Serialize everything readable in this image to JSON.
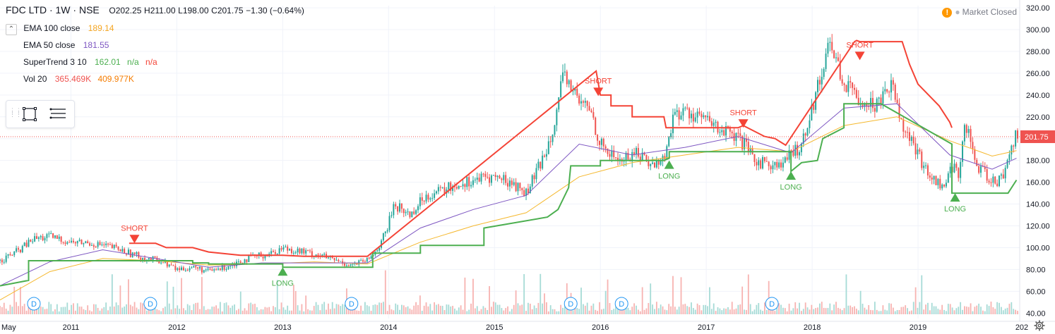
{
  "header": {
    "symbol": "FDC LTD · 1W · NSE",
    "open": "O202.25",
    "high": "H211.00",
    "low": "L198.00",
    "close": "C201.75",
    "change": "−1.30 (−0.64%)"
  },
  "indicators": [
    {
      "label": "EMA 100 close",
      "value": "189.14",
      "color": "#f5b82e"
    },
    {
      "label": "EMA 50 close",
      "value": "181.55",
      "color": "#7e57c2"
    },
    {
      "label": "SuperTrend 3 10",
      "value": "162.01",
      "extra1": "n/a",
      "extra2": "n/a"
    },
    {
      "label": "Vol 20",
      "value": "365.469K",
      "value2": "409.977K"
    }
  ],
  "market_status": "Market Closed",
  "colors": {
    "up": "#26a69a",
    "down": "#ef5350",
    "st_up": "#4caf50",
    "st_down": "#f44336",
    "ema100": "#f5b82e",
    "ema50": "#7e57c2"
  },
  "chart_data": {
    "type": "line",
    "title": "FDC LTD · 1W · NSE",
    "x_ticks": [
      "May",
      "2011",
      "2012",
      "2013",
      "2014",
      "2015",
      "2016",
      "2017",
      "2018",
      "2019",
      "202"
    ],
    "x_range": [
      2010.33,
      2019.96
    ],
    "y_ticks": [
      40,
      60,
      80,
      100,
      120,
      140,
      160,
      180,
      200,
      220,
      240,
      260,
      280,
      300,
      320
    ],
    "ylim": [
      35,
      322
    ],
    "last_price": 201.75,
    "grid": true,
    "series": [
      {
        "name": "Price",
        "x": [
          2010.33,
          2010.5,
          2010.65,
          2010.8,
          2011.0,
          2011.2,
          2011.4,
          2011.55,
          2011.7,
          2011.85,
          2012.0,
          2012.15,
          2012.3,
          2012.45,
          2012.6,
          2012.75,
          2012.9,
          2013.0,
          2013.15,
          2013.35,
          2013.5,
          2013.65,
          2013.8,
          2013.9,
          2013.98,
          2014.05,
          2014.2,
          2014.35,
          2014.5,
          2014.65,
          2014.8,
          2015.0,
          2015.15,
          2015.3,
          2015.45,
          2015.55,
          2015.65,
          2015.72,
          2015.8,
          2015.9,
          2016.0,
          2016.1,
          2016.2,
          2016.35,
          2016.5,
          2016.62,
          2016.68,
          2016.8,
          2016.95,
          2017.05,
          2017.2,
          2017.35,
          2017.45,
          2017.55,
          2017.7,
          2017.8,
          2017.9,
          2018.0,
          2018.08,
          2018.15,
          2018.22,
          2018.3,
          2018.4,
          2018.5,
          2018.6,
          2018.7,
          2018.78,
          2018.85,
          2018.95,
          2019.05,
          2019.15,
          2019.25,
          2019.32,
          2019.38,
          2019.45,
          2019.55,
          2019.65,
          2019.75,
          2019.82,
          2019.88,
          2019.93
        ],
        "values": [
          88,
          97,
          108,
          110,
          105,
          104,
          100,
          95,
          90,
          88,
          80,
          82,
          78,
          82,
          88,
          92,
          95,
          100,
          97,
          93,
          88,
          84,
          88,
          100,
          115,
          140,
          130,
          148,
          152,
          158,
          162,
          165,
          160,
          150,
          180,
          210,
          255,
          250,
          232,
          228,
          195,
          185,
          180,
          188,
          175,
          185,
          220,
          225,
          220,
          212,
          205,
          195,
          180,
          178,
          175,
          185,
          195,
          230,
          255,
          290,
          275,
          250,
          240,
          235,
          230,
          250,
          245,
          215,
          195,
          175,
          162,
          155,
          175,
          168,
          215,
          175,
          165,
          160,
          170,
          195,
          202
        ]
      },
      {
        "name": "EMA 100",
        "x": [
          2010.33,
          2010.8,
          2011.3,
          2011.8,
          2012.3,
          2012.8,
          2013.3,
          2013.8,
          2014.3,
          2014.8,
          2015.3,
          2015.8,
          2016.3,
          2016.8,
          2017.3,
          2017.8,
          2018.3,
          2018.8,
          2019.3,
          2019.7,
          2019.93
        ],
        "values": [
          52,
          78,
          90,
          88,
          84,
          85,
          87,
          85,
          105,
          120,
          132,
          165,
          178,
          185,
          192,
          188,
          212,
          220,
          198,
          184,
          189
        ]
      },
      {
        "name": "EMA 50",
        "x": [
          2010.33,
          2010.8,
          2011.3,
          2011.8,
          2012.3,
          2012.8,
          2013.3,
          2013.8,
          2014.3,
          2014.8,
          2015.3,
          2015.8,
          2016.3,
          2016.8,
          2017.3,
          2017.8,
          2018.3,
          2018.8,
          2019.3,
          2019.7,
          2019.93
        ],
        "values": [
          65,
          87,
          98,
          90,
          82,
          86,
          86,
          86,
          118,
          135,
          148,
          195,
          185,
          192,
          202,
          187,
          228,
          232,
          185,
          172,
          182
        ]
      },
      {
        "name": "SuperTrend Up",
        "x": [
          2010.33,
          2010.6,
          2010.6,
          2012.15,
          2012.15,
          2012.3,
          2012.3,
          2013.0,
          2013.0,
          2013.85,
          2013.85,
          2014.3,
          2014.3,
          2014.9,
          2014.9,
          2015.5,
          2015.6,
          2015.7,
          2015.72,
          2015.72,
          2016.0,
          2016.0,
          2016.6,
          2016.65,
          2016.65,
          2017.3,
          2017.8,
          2017.8,
          2017.9,
          2018.05,
          2018.1,
          2018.3,
          2018.3,
          2018.65,
          2019.32,
          2019.32,
          2019.85,
          2019.93
        ],
        "values": [
          65,
          70,
          88,
          88,
          86,
          86,
          85,
          85,
          82,
          82,
          95,
          95,
          102,
          102,
          118,
          128,
          135,
          155,
          175,
          175,
          175,
          180,
          180,
          182,
          188,
          188,
          188,
          170,
          178,
          180,
          200,
          210,
          232,
          232,
          195,
          150,
          150,
          162
        ]
      },
      {
        "name": "SuperTrend Down",
        "x": [
          2011.55,
          2011.8,
          2011.9,
          2012.15,
          2012.3,
          2012.6,
          2013.0,
          2013.2,
          2013.8,
          2015.96,
          2016.0,
          2016.1,
          2016.1,
          2016.3,
          2016.3,
          2016.6,
          2016.62,
          2017.3,
          2017.35,
          2017.55,
          2017.65,
          2017.7,
          2017.75,
          2018.4,
          2018.42,
          2018.45,
          2018.85,
          2018.92,
          2019.0,
          2019.2,
          2019.3,
          2019.32
        ],
        "values": [
          104,
          104,
          100,
          100,
          96,
          93,
          93,
          92,
          92,
          262,
          240,
          240,
          230,
          230,
          220,
          220,
          210,
          210,
          212,
          202,
          200,
          197,
          194,
          289,
          290,
          289,
          289,
          268,
          250,
          230,
          215,
          210
        ]
      }
    ],
    "signals": [
      {
        "type": "SHORT",
        "x": 2011.6,
        "y": 104
      },
      {
        "type": "LONG",
        "x": 2013.0,
        "y": 82
      },
      {
        "type": "SHORT",
        "x": 2015.98,
        "y": 239
      },
      {
        "type": "LONG",
        "x": 2016.65,
        "y": 180
      },
      {
        "type": "SHORT",
        "x": 2017.35,
        "y": 210
      },
      {
        "type": "LONG",
        "x": 2017.8,
        "y": 170
      },
      {
        "type": "SHORT",
        "x": 2018.45,
        "y": 272
      },
      {
        "type": "LONG",
        "x": 2019.35,
        "y": 150
      }
    ],
    "dividends": [
      2010.65,
      2011.75,
      2013.65,
      2015.72,
      2016.2,
      2017.62
    ]
  }
}
